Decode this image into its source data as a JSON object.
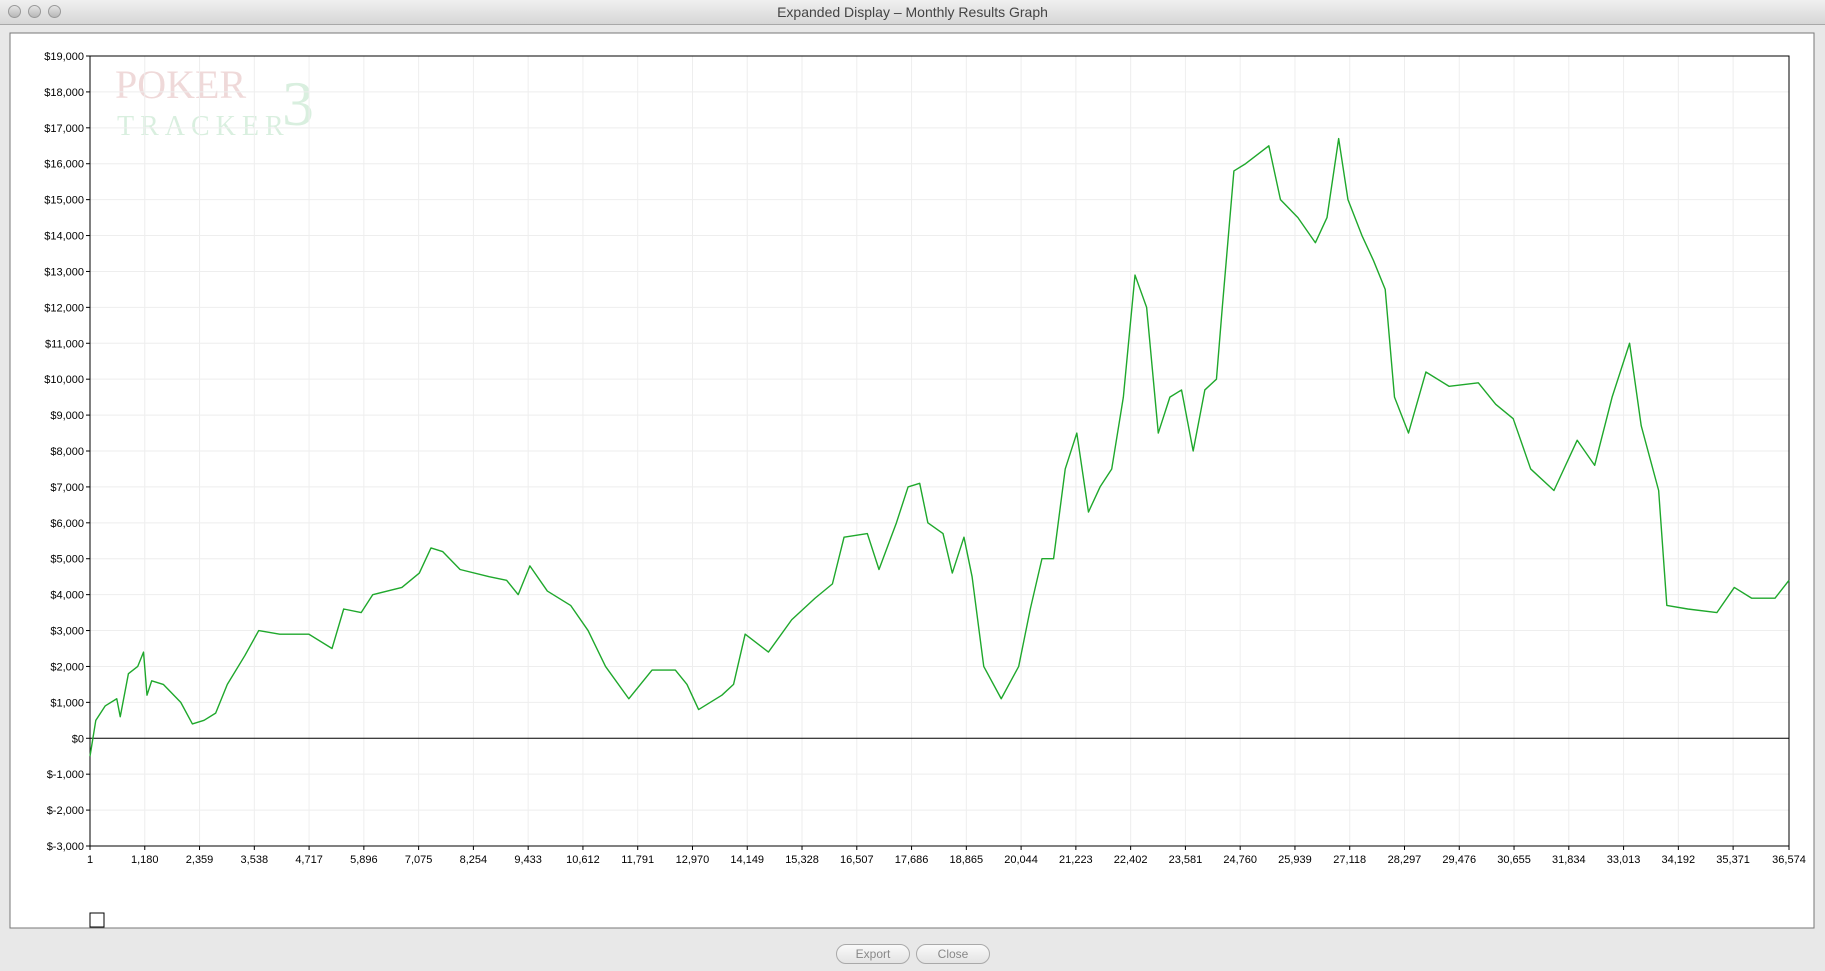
{
  "window": {
    "title": "Expanded Display – Monthly Results Graph"
  },
  "watermark": {
    "line1": "POKER",
    "line2": "TRACKER",
    "mark": "3"
  },
  "buttons": [
    "Export",
    "Close"
  ],
  "chart_data": {
    "type": "line",
    "color": "#1fa82c",
    "grid": true,
    "xlim": [
      1,
      36574
    ],
    "ylim": [
      -3000,
      19000
    ],
    "xticks": [
      1,
      {
        "value": 1180,
        "label": "1,180"
      },
      {
        "value": 2359,
        "label": "2,359"
      },
      {
        "value": 3538,
        "label": "3,538"
      },
      {
        "value": 4717,
        "label": "4,717"
      },
      {
        "value": 5896,
        "label": "5,896"
      },
      {
        "value": 7075,
        "label": "7,075"
      },
      {
        "value": 8254,
        "label": "8,254"
      },
      {
        "value": 9433,
        "label": "9,433"
      },
      {
        "value": 10612,
        "label": "10,612"
      },
      {
        "value": 11791,
        "label": "11,791"
      },
      {
        "value": 12970,
        "label": "12,970"
      },
      {
        "value": 14149,
        "label": "14,149"
      },
      {
        "value": 15328,
        "label": "15,328"
      },
      {
        "value": 16507,
        "label": "16,507"
      },
      {
        "value": 17686,
        "label": "17,686"
      },
      {
        "value": 18865,
        "label": "18,865"
      },
      {
        "value": 20044,
        "label": "20,044"
      },
      {
        "value": 21223,
        "label": "21,223"
      },
      {
        "value": 22402,
        "label": "22,402"
      },
      {
        "value": 23581,
        "label": "23,581"
      },
      {
        "value": 24760,
        "label": "24,760"
      },
      {
        "value": 25939,
        "label": "25,939"
      },
      {
        "value": 27118,
        "label": "27,118"
      },
      {
        "value": 28297,
        "label": "28,297"
      },
      {
        "value": 29476,
        "label": "29,476"
      },
      {
        "value": 30655,
        "label": "30,655"
      },
      {
        "value": 31834,
        "label": "31,834"
      },
      {
        "value": 33013,
        "label": "33,013"
      },
      {
        "value": 34192,
        "label": "34,192"
      },
      {
        "value": 35371,
        "label": "35,371"
      },
      {
        "value": 36574,
        "label": "36,574"
      }
    ],
    "yticks": [
      {
        "value": -3000,
        "label": "$-3,000"
      },
      {
        "value": -2000,
        "label": "$-2,000"
      },
      {
        "value": -1000,
        "label": "$-1,000"
      },
      {
        "value": 0,
        "label": "$0"
      },
      {
        "value": 1000,
        "label": "$1,000"
      },
      {
        "value": 2000,
        "label": "$2,000"
      },
      {
        "value": 3000,
        "label": "$3,000"
      },
      {
        "value": 4000,
        "label": "$4,000"
      },
      {
        "value": 5000,
        "label": "$5,000"
      },
      {
        "value": 6000,
        "label": "$6,000"
      },
      {
        "value": 7000,
        "label": "$7,000"
      },
      {
        "value": 8000,
        "label": "$8,000"
      },
      {
        "value": 9000,
        "label": "$9,000"
      },
      {
        "value": 10000,
        "label": "$10,000"
      },
      {
        "value": 11000,
        "label": "$11,000"
      },
      {
        "value": 12000,
        "label": "$12,000"
      },
      {
        "value": 13000,
        "label": "$13,000"
      },
      {
        "value": 14000,
        "label": "$14,000"
      },
      {
        "value": 15000,
        "label": "$15,000"
      },
      {
        "value": 16000,
        "label": "$16,000"
      },
      {
        "value": 17000,
        "label": "$17,000"
      },
      {
        "value": 18000,
        "label": "$18,000"
      },
      {
        "value": 19000,
        "label": "$19,000"
      }
    ],
    "x": [
      1,
      126,
      327,
      577,
      652,
      828,
      1028,
      1153,
      1228,
      1329,
      1579,
      1955,
      2205,
      2456,
      2706,
      2957,
      3333,
      3633,
      4084,
      4710,
      5211,
      5462,
      5838,
      6088,
      6715,
      7090,
      7341,
      7591,
      7967,
      8593,
      8969,
      9219,
      9470,
      9846,
      10347,
      10723,
      11098,
      11599,
      12100,
      12601,
      12852,
      13102,
      13603,
      13854,
      14104,
      14605,
      15106,
      15607,
      15983,
      16233,
      16734,
      16985,
      17360,
      17611,
      17861,
      18037,
      18363,
      18563,
      18814,
      18989,
      19240,
      19616,
      19992,
      20242,
      20493,
      20743,
      20994,
      21243,
      21494,
      21744,
      21995,
      22245,
      22496,
      22746,
      22997,
      23247,
      23498,
      23748,
      23999,
      24249,
      24375,
      24625,
      24876,
      25377,
      25627,
      26003,
      26379,
      26629,
      26880,
      27080,
      27381,
      27631,
      27882,
      28082,
      28383,
      28758,
      29259,
      29886,
      30261,
      30637,
      31013,
      31514,
      32015,
      32391,
      32766,
      33142,
      33393,
      33768,
      33944,
      34395,
      35021,
      35397,
      35772,
      36273,
      36574
    ],
    "values": [
      -500,
      500,
      900,
      1100,
      600,
      1800,
      2000,
      2400,
      1200,
      1600,
      1500,
      1000,
      400,
      500,
      700,
      1500,
      2300,
      3000,
      2900,
      2900,
      2500,
      3600,
      3500,
      4000,
      4200,
      4600,
      5300,
      5200,
      4700,
      4500,
      4400,
      4000,
      4800,
      4100,
      3700,
      3000,
      2000,
      1100,
      1900,
      1900,
      1500,
      800,
      1200,
      1500,
      2900,
      2400,
      3300,
      3900,
      4300,
      5600,
      5700,
      4700,
      6000,
      7000,
      7100,
      6000,
      5700,
      4600,
      5600,
      4500,
      2000,
      1100,
      2000,
      3600,
      5000,
      5000,
      7500,
      8500,
      6300,
      7000,
      7500,
      9500,
      12900,
      12000,
      8500,
      9500,
      9700,
      8000,
      9700,
      10000,
      12000,
      15800,
      16000,
      16500,
      15000,
      14500,
      13800,
      14500,
      16700,
      15000,
      14000,
      13300,
      12500,
      9500,
      8500,
      10200,
      9800,
      9900,
      9300,
      8900,
      7500,
      6900,
      8300,
      7600,
      9500,
      11000,
      8700,
      6900,
      3700,
      3600,
      3500,
      4200,
      3900,
      3900,
      4400
    ]
  }
}
